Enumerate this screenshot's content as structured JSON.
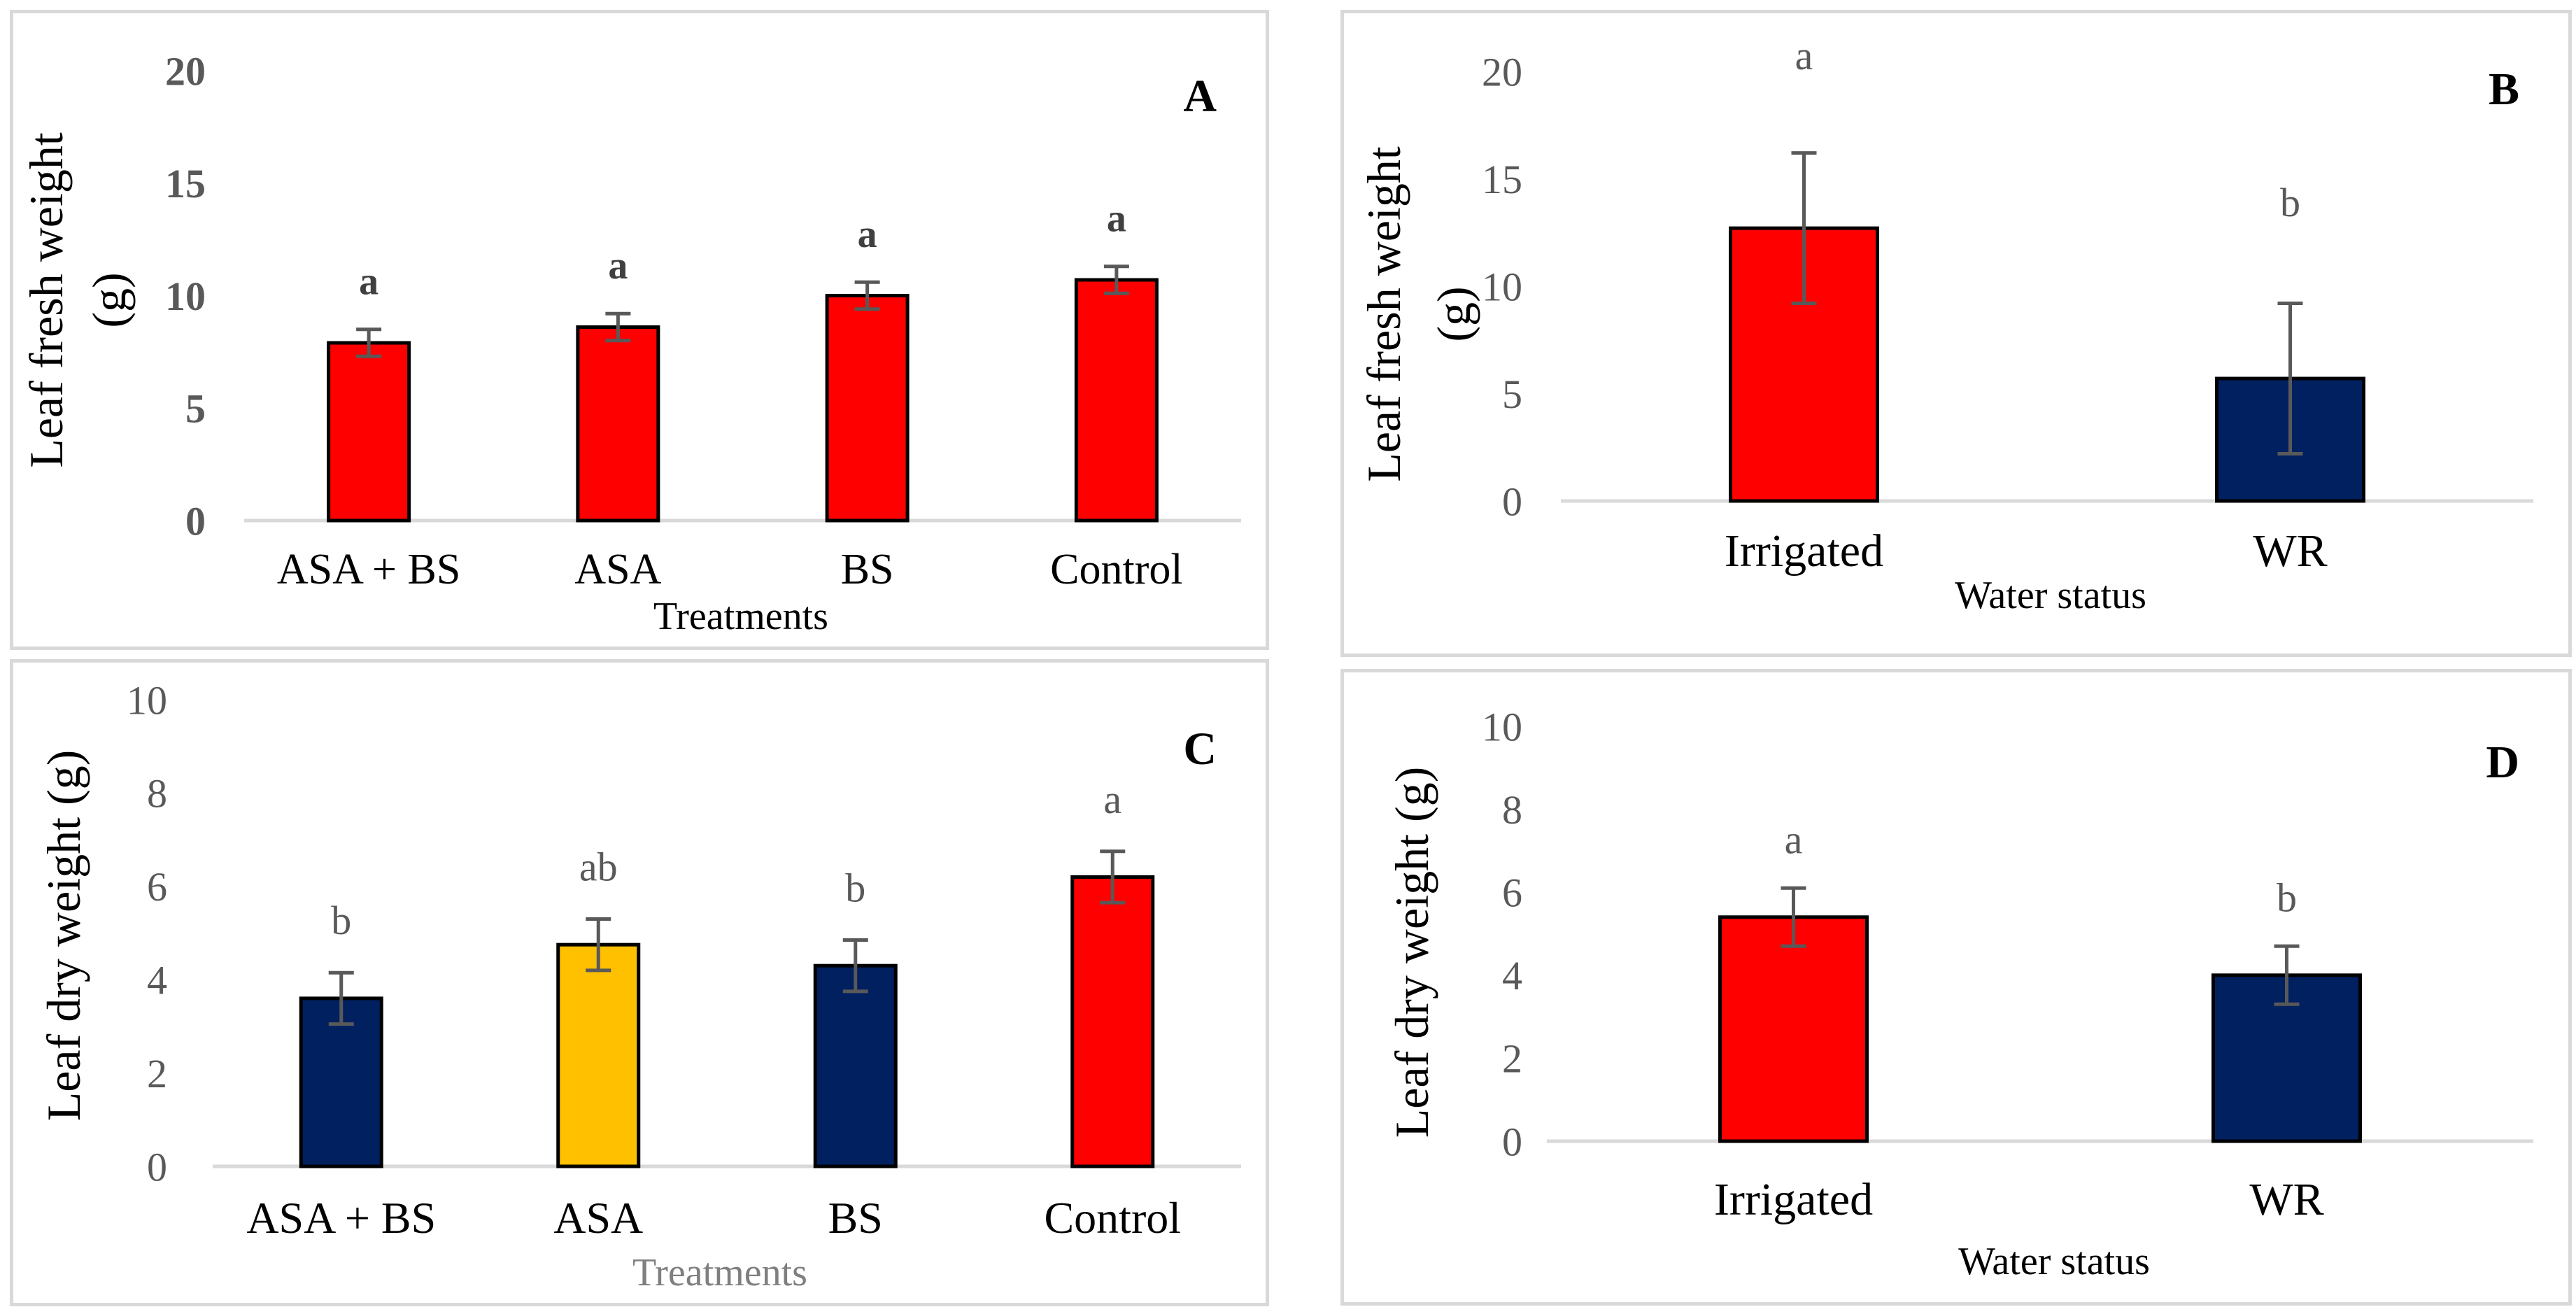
{
  "chart_data": [
    {
      "panel": "A",
      "type": "bar",
      "title": "",
      "xlabel": "Treatments",
      "ylabel": "Leaf  fresh weight (g)",
      "ylabel_lines": [
        "Leaf  fresh weight",
        "(g)"
      ],
      "ylim": [
        0,
        20
      ],
      "yticks": [
        0,
        5,
        10,
        15,
        20
      ],
      "grid": false,
      "categories": [
        "ASA + BS",
        "ASA",
        "BS",
        "Control"
      ],
      "values": [
        7.9,
        8.6,
        10.0,
        10.7
      ],
      "errors": [
        0.6,
        0.6,
        0.6,
        0.6
      ],
      "colors": [
        "#ff0000",
        "#ff0000",
        "#ff0000",
        "#ff0000"
      ],
      "letters": [
        "a",
        "a",
        "a",
        "a"
      ]
    },
    {
      "panel": "B",
      "type": "bar",
      "title": "",
      "xlabel": "Water status",
      "ylabel": "Leaf  fresh weight (g)",
      "ylabel_lines": [
        "Leaf  fresh weight",
        "(g)"
      ],
      "ylim": [
        0,
        20
      ],
      "yticks": [
        0,
        5,
        10,
        15,
        20
      ],
      "grid": false,
      "categories": [
        "Irrigated",
        "WR"
      ],
      "values": [
        12.7,
        5.7
      ],
      "errors": [
        3.5,
        3.5
      ],
      "colors": [
        "#ff0000",
        "#002060"
      ],
      "letters": [
        "a",
        "b"
      ]
    },
    {
      "panel": "C",
      "type": "bar",
      "title": "",
      "xlabel": "Treatments",
      "ylabel": "Leaf dry weight (g)",
      "ylabel_lines": [
        "Leaf dry weight (g)"
      ],
      "ylim": [
        0,
        10
      ],
      "yticks": [
        0,
        2,
        4,
        6,
        8,
        10
      ],
      "grid": false,
      "categories": [
        "ASA + BS",
        "ASA",
        "BS",
        "Control"
      ],
      "values": [
        3.6,
        4.75,
        4.3,
        6.2
      ],
      "errors": [
        0.55,
        0.55,
        0.55,
        0.55
      ],
      "colors": [
        "#002060",
        "#ffc000",
        "#002060",
        "#ff0000"
      ],
      "letters": [
        "b",
        "ab",
        "b",
        "a"
      ]
    },
    {
      "panel": "D",
      "type": "bar",
      "title": "",
      "xlabel": "Water status",
      "ylabel": "Leaf dry weight (g)",
      "ylabel_lines": [
        "Leaf dry weight (g)"
      ],
      "ylim": [
        0,
        10
      ],
      "yticks": [
        0,
        2,
        4,
        6,
        8,
        10
      ],
      "grid": false,
      "categories": [
        "Irrigated",
        "WR"
      ],
      "values": [
        5.4,
        4.0
      ],
      "errors": [
        0.7,
        0.7
      ],
      "colors": [
        "#ff0000",
        "#002060"
      ],
      "letters": [
        "a",
        "b"
      ]
    }
  ],
  "style": {
    "axis_color": "#d9d9d9",
    "bar_border": "#000000",
    "error_color": "#595959",
    "tick_label_color": "#595959",
    "category_label_color": "#000000",
    "text_color": "#000000",
    "treatments_label_color_c": "#7f7f7f"
  }
}
